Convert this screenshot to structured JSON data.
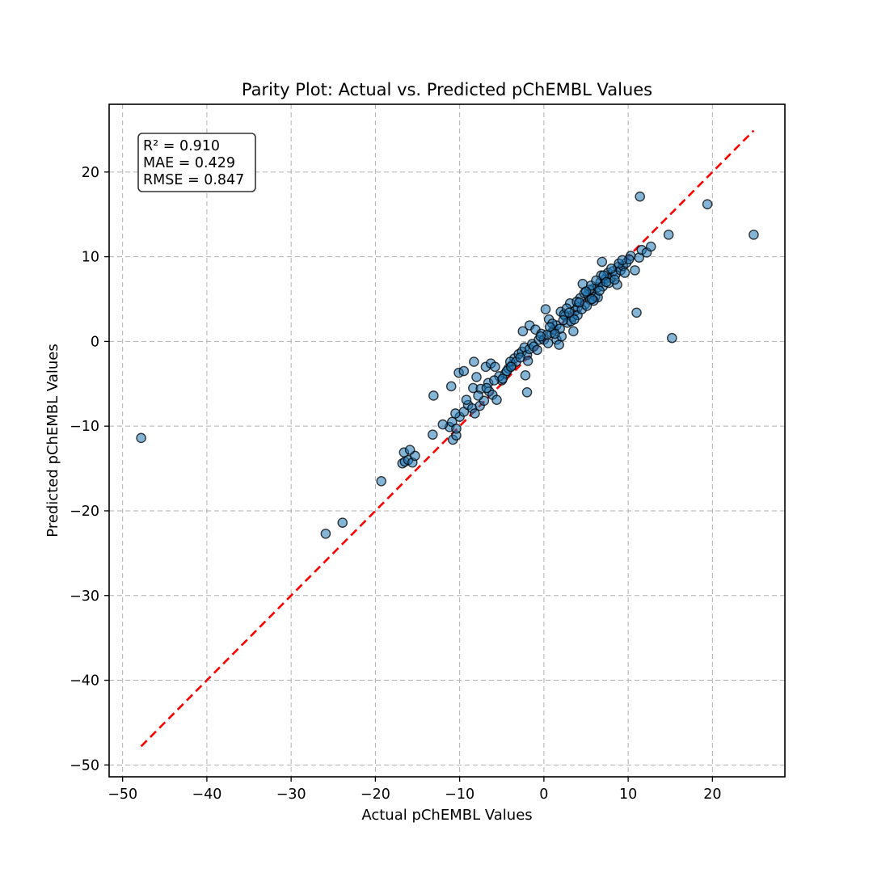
{
  "chart_data": {
    "type": "scatter",
    "title": "Parity Plot: Actual vs. Predicted pChEMBL Values",
    "xlabel": "Actual pChEMBL Values",
    "ylabel": "Predicted pChEMBL Values",
    "xlim": [
      -51.6,
      28.6
    ],
    "ylim": [
      -51.4,
      28.0
    ],
    "xticks": [
      -50,
      -40,
      -30,
      -20,
      -10,
      0,
      10,
      20
    ],
    "xtick_labels": [
      "−50",
      "−40",
      "−30",
      "−20",
      "−10",
      "0",
      "10",
      "20"
    ],
    "yticks": [
      -50,
      -40,
      -30,
      -20,
      -10,
      0,
      10,
      20
    ],
    "ytick_labels": [
      "−50",
      "−40",
      "−30",
      "−20",
      "−10",
      "0",
      "10",
      "20"
    ],
    "grid": true,
    "annotation": {
      "lines": [
        "R² = 0.910",
        "MAE = 0.429",
        "RMSE = 0.847"
      ],
      "placement": "top-left"
    },
    "reference_line": {
      "label": "",
      "x": [
        -47.8,
        24.9
      ],
      "y": [
        -47.8,
        24.9
      ],
      "color": "#ff0000",
      "style": "dashed"
    },
    "point_color": "#1f77b4",
    "point_edge_color": "#000000",
    "points": [
      [
        -47.8,
        -11.4
      ],
      [
        -25.9,
        -22.7
      ],
      [
        -23.9,
        -21.4
      ],
      [
        -19.3,
        -16.5
      ],
      [
        -16.8,
        -14.4
      ],
      [
        -16.5,
        -14.2
      ],
      [
        -16.1,
        -14.0
      ],
      [
        -15.6,
        -14.3
      ],
      [
        -15.3,
        -13.5
      ],
      [
        -16.6,
        -13.1
      ],
      [
        -15.9,
        -12.8
      ],
      [
        -13.1,
        -6.4
      ],
      [
        -13.2,
        -11.0
      ],
      [
        -10.8,
        -11.6
      ],
      [
        -10.4,
        -11.1
      ],
      [
        -11.2,
        -10.1
      ],
      [
        -10.9,
        -9.5
      ],
      [
        -10.4,
        -10.3
      ],
      [
        -10.0,
        -8.9
      ],
      [
        -10.5,
        -8.5
      ],
      [
        -9.5,
        -8.3
      ],
      [
        -9.0,
        -7.5
      ],
      [
        -8.5,
        -7.9
      ],
      [
        -8.2,
        -8.5
      ],
      [
        -7.6,
        -7.6
      ],
      [
        -7.1,
        -7.0
      ],
      [
        -11.0,
        -5.3
      ],
      [
        -10.1,
        -3.7
      ],
      [
        -9.5,
        -3.5
      ],
      [
        -8.3,
        -2.4
      ],
      [
        -8.4,
        -5.5
      ],
      [
        -8.0,
        -4.2
      ],
      [
        -6.9,
        -3.0
      ],
      [
        -6.3,
        -2.6
      ],
      [
        -5.8,
        -3.0
      ],
      [
        -7.5,
        -5.6
      ],
      [
        -6.5,
        -5.9
      ],
      [
        -6.1,
        -6.3
      ],
      [
        -5.6,
        -6.9
      ],
      [
        -5.0,
        -4.6
      ],
      [
        -4.6,
        -3.8
      ],
      [
        -4.2,
        -3.2
      ],
      [
        -3.8,
        -2.8
      ],
      [
        -3.5,
        -2.0
      ],
      [
        -3.0,
        -1.5
      ],
      [
        -2.6,
        -1.2
      ],
      [
        -2.3,
        -0.7
      ],
      [
        -2.0,
        -1.6
      ],
      [
        -1.7,
        -0.9
      ],
      [
        -1.4,
        -0.3
      ],
      [
        -4.0,
        -2.4
      ],
      [
        -2.2,
        -4.0
      ],
      [
        -2.0,
        -6.0
      ],
      [
        -2.5,
        1.2
      ],
      [
        -1.7,
        1.9
      ],
      [
        -1.0,
        1.4
      ],
      [
        -0.6,
        0.2
      ],
      [
        -0.3,
        0.9
      ],
      [
        0.0,
        0.2
      ],
      [
        0.2,
        3.8
      ],
      [
        0.6,
        2.6
      ],
      [
        0.9,
        1.0
      ],
      [
        1.2,
        1.4
      ],
      [
        1.5,
        0.2
      ],
      [
        1.8,
        -0.4
      ],
      [
        2.1,
        0.6
      ],
      [
        2.0,
        3.5
      ],
      [
        2.5,
        3.0
      ],
      [
        2.8,
        2.2
      ],
      [
        3.1,
        4.5
      ],
      [
        3.4,
        2.9
      ],
      [
        3.7,
        3.6
      ],
      [
        4.0,
        4.0
      ],
      [
        4.3,
        5.1
      ],
      [
        4.6,
        6.8
      ],
      [
        4.9,
        4.4
      ],
      [
        5.2,
        5.5
      ],
      [
        5.5,
        4.9
      ],
      [
        5.8,
        6.2
      ],
      [
        6.1,
        5.3
      ],
      [
        6.4,
        6.4
      ],
      [
        6.7,
        7.0
      ],
      [
        7.0,
        6.5
      ],
      [
        7.3,
        7.4
      ],
      [
        7.6,
        8.1
      ],
      [
        7.9,
        7.5
      ],
      [
        8.2,
        8.3
      ],
      [
        8.5,
        7.9
      ],
      [
        8.8,
        8.8
      ],
      [
        9.1,
        8.4
      ],
      [
        9.4,
        8.9
      ],
      [
        6.9,
        9.4
      ],
      [
        6.4,
        5.2
      ],
      [
        5.4,
        6.1
      ],
      [
        3.5,
        1.2
      ],
      [
        3.2,
        2.4
      ],
      [
        0.5,
        -0.2
      ],
      [
        1.5,
        1.9
      ],
      [
        2.4,
        3.2
      ],
      [
        4.0,
        3.1
      ],
      [
        4.8,
        5.7
      ],
      [
        5.9,
        4.8
      ],
      [
        6.8,
        7.8
      ],
      [
        7.7,
        6.9
      ],
      [
        8.7,
        6.7
      ],
      [
        9.8,
        9.3
      ],
      [
        10.3,
        10.1
      ],
      [
        10.8,
        8.4
      ],
      [
        11.3,
        9.9
      ],
      [
        11.6,
        10.8
      ],
      [
        12.2,
        10.5
      ],
      [
        12.7,
        11.2
      ],
      [
        11.0,
        3.4
      ],
      [
        11.4,
        17.1
      ],
      [
        14.8,
        12.6
      ],
      [
        15.2,
        0.4
      ],
      [
        19.4,
        16.2
      ],
      [
        24.9,
        12.6
      ],
      [
        -12.0,
        -9.8
      ],
      [
        -9.2,
        -6.9
      ],
      [
        -6.6,
        -4.9
      ],
      [
        -5.3,
        -4.1
      ],
      [
        -4.4,
        -3.5
      ],
      [
        -3.3,
        -2.4
      ],
      [
        -2.8,
        -1.9
      ],
      [
        -1.2,
        -0.6
      ],
      [
        -0.8,
        -1.0
      ],
      [
        0.4,
        0.8
      ],
      [
        1.0,
        2.1
      ],
      [
        1.9,
        1.5
      ],
      [
        2.7,
        3.9
      ],
      [
        3.9,
        4.7
      ],
      [
        4.5,
        3.8
      ],
      [
        5.1,
        4.2
      ],
      [
        5.6,
        6.6
      ],
      [
        6.2,
        7.2
      ],
      [
        7.1,
        7.8
      ],
      [
        8.0,
        8.6
      ],
      [
        8.9,
        9.2
      ],
      [
        9.6,
        8.1
      ],
      [
        10.1,
        9.7
      ],
      [
        -7.8,
        -6.4
      ],
      [
        -6.8,
        -5.5
      ],
      [
        -5.9,
        -4.6
      ],
      [
        -4.9,
        -4.4
      ],
      [
        -3.9,
        -3.0
      ],
      [
        -1.9,
        -2.3
      ],
      [
        -0.4,
        0.6
      ],
      [
        0.7,
        1.7
      ],
      [
        1.3,
        0.9
      ],
      [
        2.3,
        2.5
      ],
      [
        3.0,
        3.4
      ],
      [
        3.6,
        2.6
      ],
      [
        4.2,
        4.6
      ],
      [
        5.0,
        5.9
      ],
      [
        5.7,
        5.0
      ],
      [
        6.6,
        6.0
      ],
      [
        7.4,
        7.0
      ],
      [
        8.4,
        7.3
      ],
      [
        9.3,
        9.6
      ]
    ]
  }
}
